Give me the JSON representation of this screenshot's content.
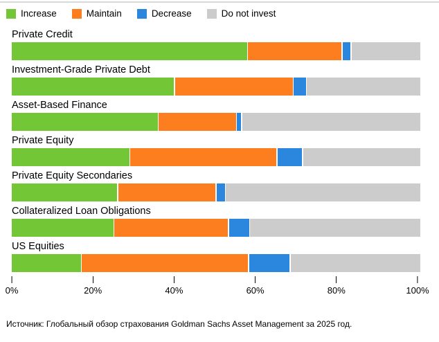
{
  "legend": {
    "items": [
      {
        "label": "Increase",
        "color": "#73c636"
      },
      {
        "label": "Maintain",
        "color": "#fd7e1f"
      },
      {
        "label": "Decrease",
        "color": "#2b87de"
      },
      {
        "label": "Do not invest",
        "color": "#cccccc"
      }
    ]
  },
  "chart_data": {
    "type": "bar",
    "stacked": true,
    "orientation": "horizontal",
    "categories": [
      "Private Credit",
      "Investment-Grade Private Debt",
      "Asset-Based Finance",
      "Private Equity",
      "Private Equity Secondaries",
      "Collateralized Loan Obligations",
      "US Equities"
    ],
    "series": [
      {
        "name": "Increase",
        "color": "#73c636",
        "values": [
          58,
          40,
          36,
          29,
          26,
          25,
          17
        ]
      },
      {
        "name": "Maintain",
        "color": "#fd7e1f",
        "values": [
          23,
          29,
          19,
          36,
          24,
          28,
          41
        ]
      },
      {
        "name": "Decrease",
        "color": "#2b87de",
        "values": [
          2,
          3,
          1,
          6,
          2,
          5,
          10
        ]
      },
      {
        "name": "Do not invest",
        "color": "#cccccc",
        "values": [
          17,
          28,
          44,
          29,
          48,
          42,
          32
        ]
      }
    ],
    "unit": "%",
    "xlim": [
      0,
      100
    ],
    "x_ticks": [
      "0%",
      "20%",
      "40%",
      "60%",
      "80%",
      "100%"
    ],
    "grid": false,
    "legend_position": "top"
  },
  "source": "Источник: Глобальный обзор страхования Goldman Sachs Asset Management за 2025 год."
}
